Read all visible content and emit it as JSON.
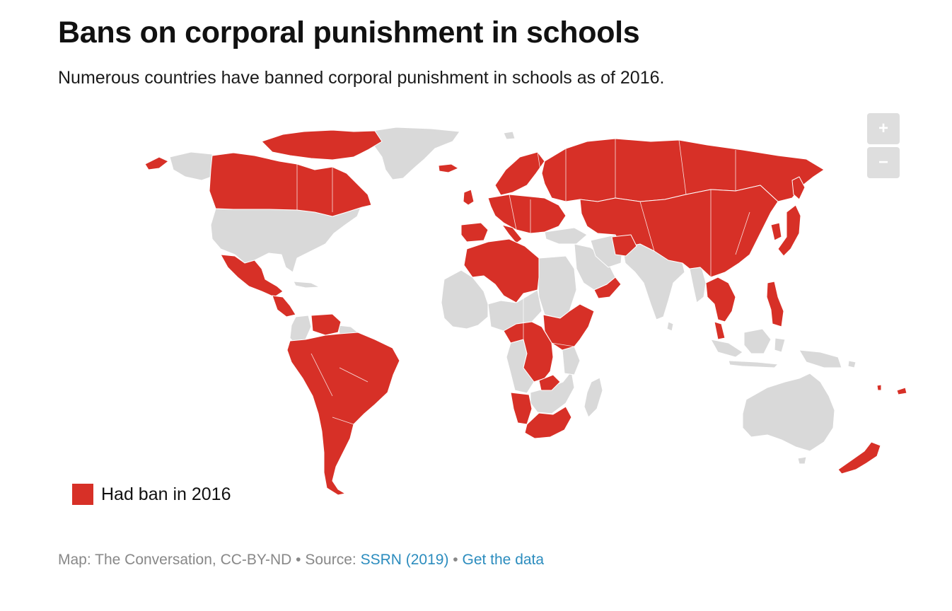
{
  "title": "Bans on corporal punishment in schools",
  "subtitle": "Numerous countries have banned corporal punishment in schools as of 2016.",
  "map": {
    "colors": {
      "ban": "#d73027",
      "no_ban": "#d9d9d9",
      "border": "#ffffff"
    }
  },
  "zoom": {
    "in_label": "+",
    "out_label": "−"
  },
  "legend": {
    "label": "Had ban in 2016",
    "color": "#d73027"
  },
  "footer": {
    "credit": "Map: The Conversation, CC-BY-ND",
    "separator": " • ",
    "source_prefix": "Source: ",
    "source_link": "SSRN (2019)",
    "data_link": "Get the data"
  }
}
